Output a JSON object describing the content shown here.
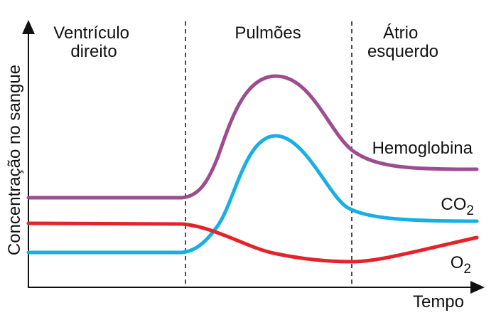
{
  "chart_data": {
    "type": "line",
    "xlabel": "Tempo",
    "ylabel": "Concentração no sangue",
    "regions": [
      {
        "lines": [
          "Ventrículo",
          "direito"
        ]
      },
      {
        "lines": [
          "Pulmões"
        ]
      },
      {
        "lines": [
          "Átrio",
          "esquerdo"
        ]
      }
    ],
    "series": [
      {
        "name": "Hemoglobina",
        "name_sub": "",
        "color": "#9c4c8f"
      },
      {
        "name": "CO",
        "name_sub": "2",
        "color": "#19aee6"
      },
      {
        "name": "O",
        "name_sub": "2",
        "color": "#e3242b"
      }
    ]
  }
}
